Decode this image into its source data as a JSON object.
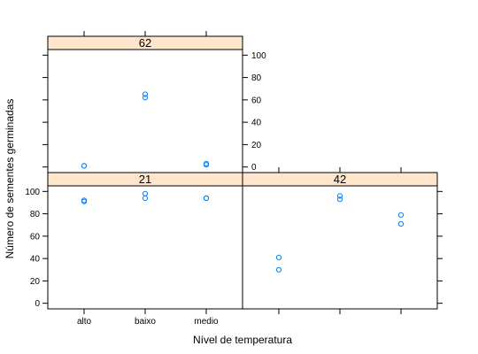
{
  "chart_data": {
    "type": "scatter",
    "xlabel": "Nível de temperatura",
    "ylabel": "Número de sementes germinadas",
    "categories": [
      "alto",
      "baixo",
      "medio"
    ],
    "y_ticks": [
      0,
      20,
      40,
      60,
      80,
      100
    ],
    "ylim": [
      -5,
      105
    ],
    "point_color": "#0080ff",
    "strip_color": "#ffe5cc",
    "layout": "lattice 2x2 (panels: 21 bottom-left, 42 bottom-right, 62 top-left)",
    "panels": [
      {
        "label": "21",
        "points": [
          {
            "x": "alto",
            "y": 91
          },
          {
            "x": "alto",
            "y": 92
          },
          {
            "x": "baixo",
            "y": 94
          },
          {
            "x": "baixo",
            "y": 98
          },
          {
            "x": "medio",
            "y": 94
          },
          {
            "x": "medio",
            "y": 94
          }
        ]
      },
      {
        "label": "42",
        "points": [
          {
            "x": "alto",
            "y": 30
          },
          {
            "x": "alto",
            "y": 41
          },
          {
            "x": "baixo",
            "y": 93
          },
          {
            "x": "baixo",
            "y": 96
          },
          {
            "x": "medio",
            "y": 71
          },
          {
            "x": "medio",
            "y": 79
          }
        ]
      },
      {
        "label": "62",
        "points": [
          {
            "x": "alto",
            "y": 1
          },
          {
            "x": "alto",
            "y": 1
          },
          {
            "x": "baixo",
            "y": 62
          },
          {
            "x": "baixo",
            "y": 65
          },
          {
            "x": "medio",
            "y": 2
          },
          {
            "x": "medio",
            "y": 3
          }
        ]
      }
    ]
  }
}
